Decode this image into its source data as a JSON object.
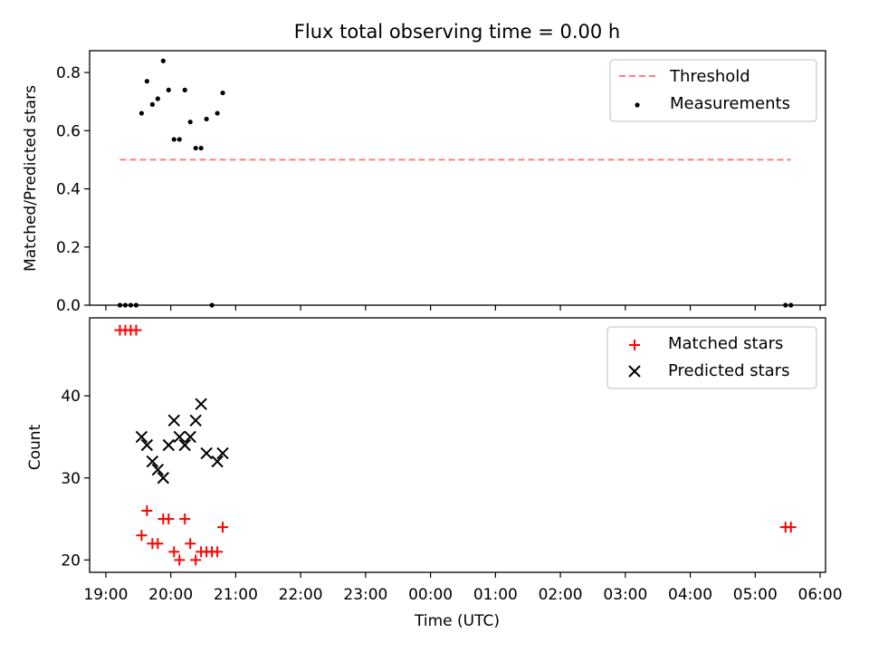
{
  "title": "Flux total observing time = 0.00 h",
  "xlabel": "Time (UTC)",
  "x_ticks": [
    "19:00",
    "20:00",
    "21:00",
    "22:00",
    "23:00",
    "00:00",
    "01:00",
    "02:00",
    "03:00",
    "04:00",
    "05:00",
    "06:00"
  ],
  "chart_data": [
    {
      "type": "scatter",
      "ylabel": "Matched/Predicted stars",
      "ylim": [
        0,
        0.875
      ],
      "y_ticks": [
        "0.0",
        "0.2",
        "0.4",
        "0.6",
        "0.8"
      ],
      "legend_position": "top-right",
      "series": [
        {
          "name": "Threshold",
          "kind": "dashed-line",
          "color": "#ff7f7f",
          "x": [
            "19:13",
            "05:33"
          ],
          "y": [
            0.5,
            0.5
          ]
        },
        {
          "name": "Measurements",
          "kind": "dots",
          "color": "#000000",
          "x": [
            "19:13",
            "19:18",
            "19:23",
            "19:28",
            "19:33",
            "19:38",
            "19:43",
            "19:48",
            "19:53",
            "19:58",
            "20:03",
            "20:08",
            "20:13",
            "20:18",
            "20:23",
            "20:28",
            "20:33",
            "20:38",
            "20:43",
            "20:48",
            "05:28",
            "05:33"
          ],
          "y": [
            0,
            0,
            0,
            0,
            0.66,
            0.77,
            0.69,
            0.71,
            0.84,
            0.74,
            0.57,
            0.57,
            0.74,
            0.63,
            0.54,
            0.54,
            0.64,
            0,
            0.66,
            0.73,
            0,
            0
          ]
        }
      ]
    },
    {
      "type": "scatter",
      "ylabel": "Count",
      "ylim": [
        18.5,
        49.5
      ],
      "y_ticks": [
        "20",
        "30",
        "40"
      ],
      "legend_position": "top-right",
      "series": [
        {
          "name": "Matched stars",
          "kind": "plus",
          "color": "#ff0000",
          "x": [
            "19:13",
            "19:18",
            "19:23",
            "19:28",
            "19:33",
            "19:38",
            "19:43",
            "19:48",
            "19:53",
            "19:58",
            "20:03",
            "20:08",
            "20:13",
            "20:18",
            "20:23",
            "20:28",
            "20:33",
            "20:38",
            "20:43",
            "20:48",
            "05:28",
            "05:33"
          ],
          "y": [
            48,
            48,
            48,
            48,
            23,
            26,
            22,
            22,
            25,
            25,
            21,
            20,
            25,
            22,
            20,
            21,
            21,
            21,
            21,
            24,
            24,
            24
          ]
        },
        {
          "name": "Predicted stars",
          "kind": "x",
          "color": "#000000",
          "x": [
            "19:33",
            "19:38",
            "19:43",
            "19:48",
            "19:53",
            "19:58",
            "20:03",
            "20:08",
            "20:13",
            "20:18",
            "20:23",
            "20:28",
            "20:33",
            "20:43",
            "20:48"
          ],
          "y": [
            35,
            34,
            32,
            31,
            30,
            34,
            37,
            35,
            34,
            35,
            37,
            39,
            33,
            32,
            33
          ]
        }
      ]
    }
  ]
}
